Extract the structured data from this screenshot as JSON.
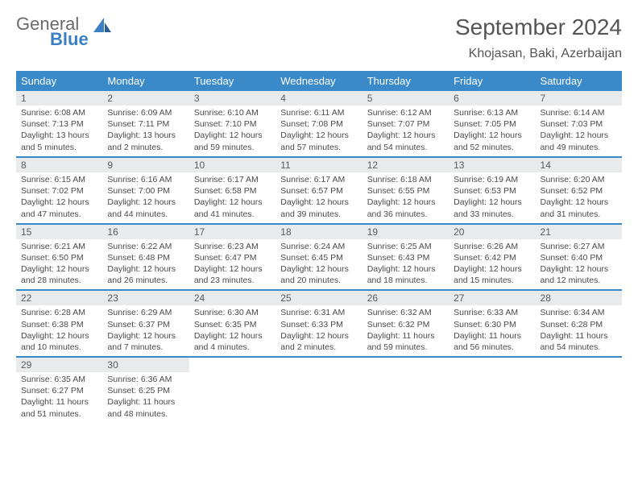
{
  "logo": {
    "word1": "General",
    "word2": "Blue"
  },
  "title": "September 2024",
  "location": "Khojasan, Baki, Azerbaijan",
  "colors": {
    "header_bg": "#3a89c9",
    "header_text": "#ffffff",
    "daynum_bg": "#e9eaeb",
    "row_border": "#3a89c9",
    "body_text": "#4a4a4a",
    "logo_gray": "#6a6a6a",
    "logo_blue": "#3a7fc4"
  },
  "weekdays": [
    "Sunday",
    "Monday",
    "Tuesday",
    "Wednesday",
    "Thursday",
    "Friday",
    "Saturday"
  ],
  "weeks": [
    [
      {
        "n": "1",
        "sr": "6:08 AM",
        "ss": "7:13 PM",
        "dl": "13 hours and 5 minutes."
      },
      {
        "n": "2",
        "sr": "6:09 AM",
        "ss": "7:11 PM",
        "dl": "13 hours and 2 minutes."
      },
      {
        "n": "3",
        "sr": "6:10 AM",
        "ss": "7:10 PM",
        "dl": "12 hours and 59 minutes."
      },
      {
        "n": "4",
        "sr": "6:11 AM",
        "ss": "7:08 PM",
        "dl": "12 hours and 57 minutes."
      },
      {
        "n": "5",
        "sr": "6:12 AM",
        "ss": "7:07 PM",
        "dl": "12 hours and 54 minutes."
      },
      {
        "n": "6",
        "sr": "6:13 AM",
        "ss": "7:05 PM",
        "dl": "12 hours and 52 minutes."
      },
      {
        "n": "7",
        "sr": "6:14 AM",
        "ss": "7:03 PM",
        "dl": "12 hours and 49 minutes."
      }
    ],
    [
      {
        "n": "8",
        "sr": "6:15 AM",
        "ss": "7:02 PM",
        "dl": "12 hours and 47 minutes."
      },
      {
        "n": "9",
        "sr": "6:16 AM",
        "ss": "7:00 PM",
        "dl": "12 hours and 44 minutes."
      },
      {
        "n": "10",
        "sr": "6:17 AM",
        "ss": "6:58 PM",
        "dl": "12 hours and 41 minutes."
      },
      {
        "n": "11",
        "sr": "6:17 AM",
        "ss": "6:57 PM",
        "dl": "12 hours and 39 minutes."
      },
      {
        "n": "12",
        "sr": "6:18 AM",
        "ss": "6:55 PM",
        "dl": "12 hours and 36 minutes."
      },
      {
        "n": "13",
        "sr": "6:19 AM",
        "ss": "6:53 PM",
        "dl": "12 hours and 33 minutes."
      },
      {
        "n": "14",
        "sr": "6:20 AM",
        "ss": "6:52 PM",
        "dl": "12 hours and 31 minutes."
      }
    ],
    [
      {
        "n": "15",
        "sr": "6:21 AM",
        "ss": "6:50 PM",
        "dl": "12 hours and 28 minutes."
      },
      {
        "n": "16",
        "sr": "6:22 AM",
        "ss": "6:48 PM",
        "dl": "12 hours and 26 minutes."
      },
      {
        "n": "17",
        "sr": "6:23 AM",
        "ss": "6:47 PM",
        "dl": "12 hours and 23 minutes."
      },
      {
        "n": "18",
        "sr": "6:24 AM",
        "ss": "6:45 PM",
        "dl": "12 hours and 20 minutes."
      },
      {
        "n": "19",
        "sr": "6:25 AM",
        "ss": "6:43 PM",
        "dl": "12 hours and 18 minutes."
      },
      {
        "n": "20",
        "sr": "6:26 AM",
        "ss": "6:42 PM",
        "dl": "12 hours and 15 minutes."
      },
      {
        "n": "21",
        "sr": "6:27 AM",
        "ss": "6:40 PM",
        "dl": "12 hours and 12 minutes."
      }
    ],
    [
      {
        "n": "22",
        "sr": "6:28 AM",
        "ss": "6:38 PM",
        "dl": "12 hours and 10 minutes."
      },
      {
        "n": "23",
        "sr": "6:29 AM",
        "ss": "6:37 PM",
        "dl": "12 hours and 7 minutes."
      },
      {
        "n": "24",
        "sr": "6:30 AM",
        "ss": "6:35 PM",
        "dl": "12 hours and 4 minutes."
      },
      {
        "n": "25",
        "sr": "6:31 AM",
        "ss": "6:33 PM",
        "dl": "12 hours and 2 minutes."
      },
      {
        "n": "26",
        "sr": "6:32 AM",
        "ss": "6:32 PM",
        "dl": "11 hours and 59 minutes."
      },
      {
        "n": "27",
        "sr": "6:33 AM",
        "ss": "6:30 PM",
        "dl": "11 hours and 56 minutes."
      },
      {
        "n": "28",
        "sr": "6:34 AM",
        "ss": "6:28 PM",
        "dl": "11 hours and 54 minutes."
      }
    ],
    [
      {
        "n": "29",
        "sr": "6:35 AM",
        "ss": "6:27 PM",
        "dl": "11 hours and 51 minutes."
      },
      {
        "n": "30",
        "sr": "6:36 AM",
        "ss": "6:25 PM",
        "dl": "11 hours and 48 minutes."
      },
      null,
      null,
      null,
      null,
      null
    ]
  ],
  "labels": {
    "sunrise": "Sunrise:",
    "sunset": "Sunset:",
    "daylight": "Daylight:"
  }
}
